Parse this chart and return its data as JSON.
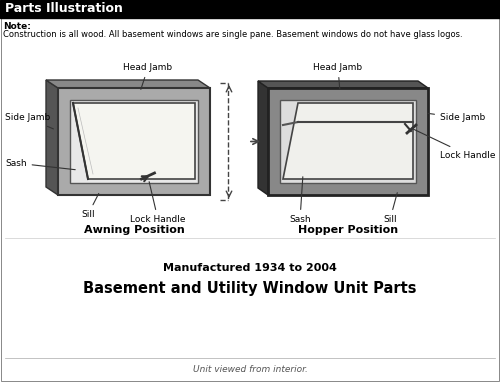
{
  "title": "Parts Illustration",
  "title_bg": "#000000",
  "title_color": "#ffffff",
  "note_label": "Note:",
  "note_text": "Construction is all wood. All basement windows are single pane. Basement windows do not have glass logos.",
  "left_label": "Awning Position",
  "right_label": "Hopper Position",
  "bottom_title1": "Manufactured 1934 to 2004",
  "bottom_title2": "Basement and Utility Window Unit Parts",
  "bottom_italic": "Unit viewed from interior.",
  "bg_color": "#ffffff"
}
